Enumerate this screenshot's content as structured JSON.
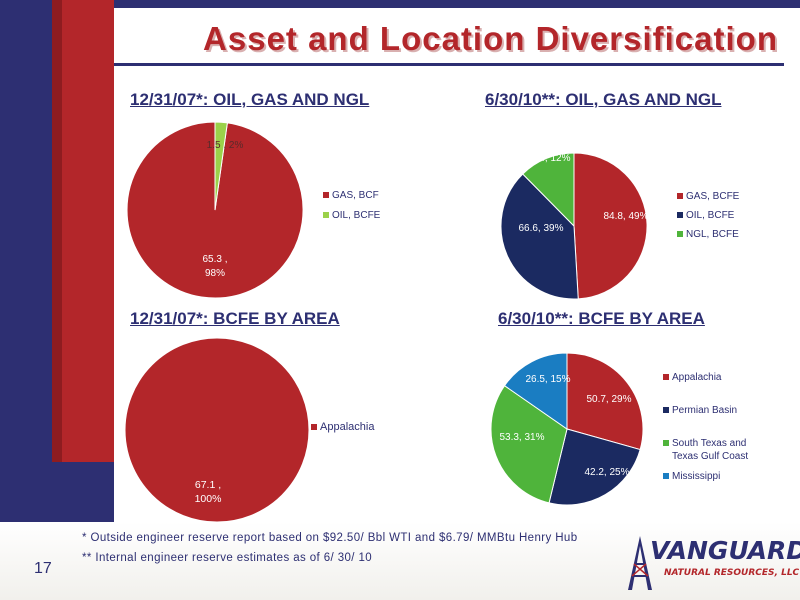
{
  "slide": {
    "title": "Asset and Location Diversification",
    "page_number": "17"
  },
  "footer": {
    "note1": "* Outside engineer reserve report based on $92.50/ Bbl WTI and $6.79/ MMBtu Henry Hub",
    "note2": "** Internal engineer reserve estimates as of 6/ 30/ 10",
    "logo_main": "VANGUARD",
    "logo_sub": "NATURAL RESOURCES, LLC"
  },
  "colors": {
    "red": "#b3262a",
    "navy": "#1b2a61",
    "green": "#4fb43b",
    "lightgreen": "#9bd14a",
    "blue": "#1a7dc2"
  },
  "chart_data": [
    {
      "type": "pie",
      "title": "12/31/07*: OIL, GAS AND NGL",
      "slices": [
        {
          "legend": "GAS, BCF",
          "value": 65.3,
          "pct": 98,
          "label_line1": "65.3 ,",
          "label_line2": "98%",
          "color": "#b3262a"
        },
        {
          "legend": "OIL, BCFE",
          "value": 1.5,
          "pct": 2,
          "label_line1": "1.5 , 2%",
          "label_line2": "",
          "color": "#9bd14a"
        }
      ],
      "legend_position": "right"
    },
    {
      "type": "pie",
      "title": "6/30/10**: OIL, GAS AND NGL",
      "slices": [
        {
          "legend": "GAS, BCFE",
          "value": 84.8,
          "pct": 49,
          "label_line1": "84.8, 49%",
          "label_line2": "",
          "color": "#b3262a"
        },
        {
          "legend": "OIL, BCFE",
          "value": 66.6,
          "pct": 39,
          "label_line1": "66.6, 39%",
          "label_line2": "",
          "color": "#1b2a61"
        },
        {
          "legend": "NGL, BCFE",
          "value": 21.4,
          "pct": 12,
          "label_line1": "21.4, 12%",
          "label_line2": "",
          "color": "#4fb43b"
        }
      ],
      "legend_position": "right"
    },
    {
      "type": "pie",
      "title": "12/31/07*: BCFE BY AREA",
      "slices": [
        {
          "legend": "Appalachia",
          "value": 67.1,
          "pct": 100,
          "label_line1": "67.1 ,",
          "label_line2": "100%",
          "color": "#b3262a"
        }
      ],
      "legend_position": "right"
    },
    {
      "type": "pie",
      "title": "6/30/10**: BCFE BY AREA",
      "slices": [
        {
          "legend": "Appalachia",
          "value": 50.7,
          "pct": 29,
          "label_line1": "50.7, 29%",
          "label_line2": "",
          "color": "#b3262a"
        },
        {
          "legend": "Permian Basin",
          "value": 42.2,
          "pct": 25,
          "label_line1": "42.2, 25%",
          "label_line2": "",
          "color": "#1b2a61"
        },
        {
          "legend": "South Texas and Texas Gulf Coast",
          "value": 53.3,
          "pct": 31,
          "label_line1": "53.3, 31%",
          "label_line2": "",
          "color": "#4fb43b"
        },
        {
          "legend": "Mississippi",
          "value": 26.5,
          "pct": 15,
          "label_line1": "26.5, 15%",
          "label_line2": "",
          "color": "#1a7dc2"
        }
      ],
      "legend_position": "right"
    }
  ]
}
